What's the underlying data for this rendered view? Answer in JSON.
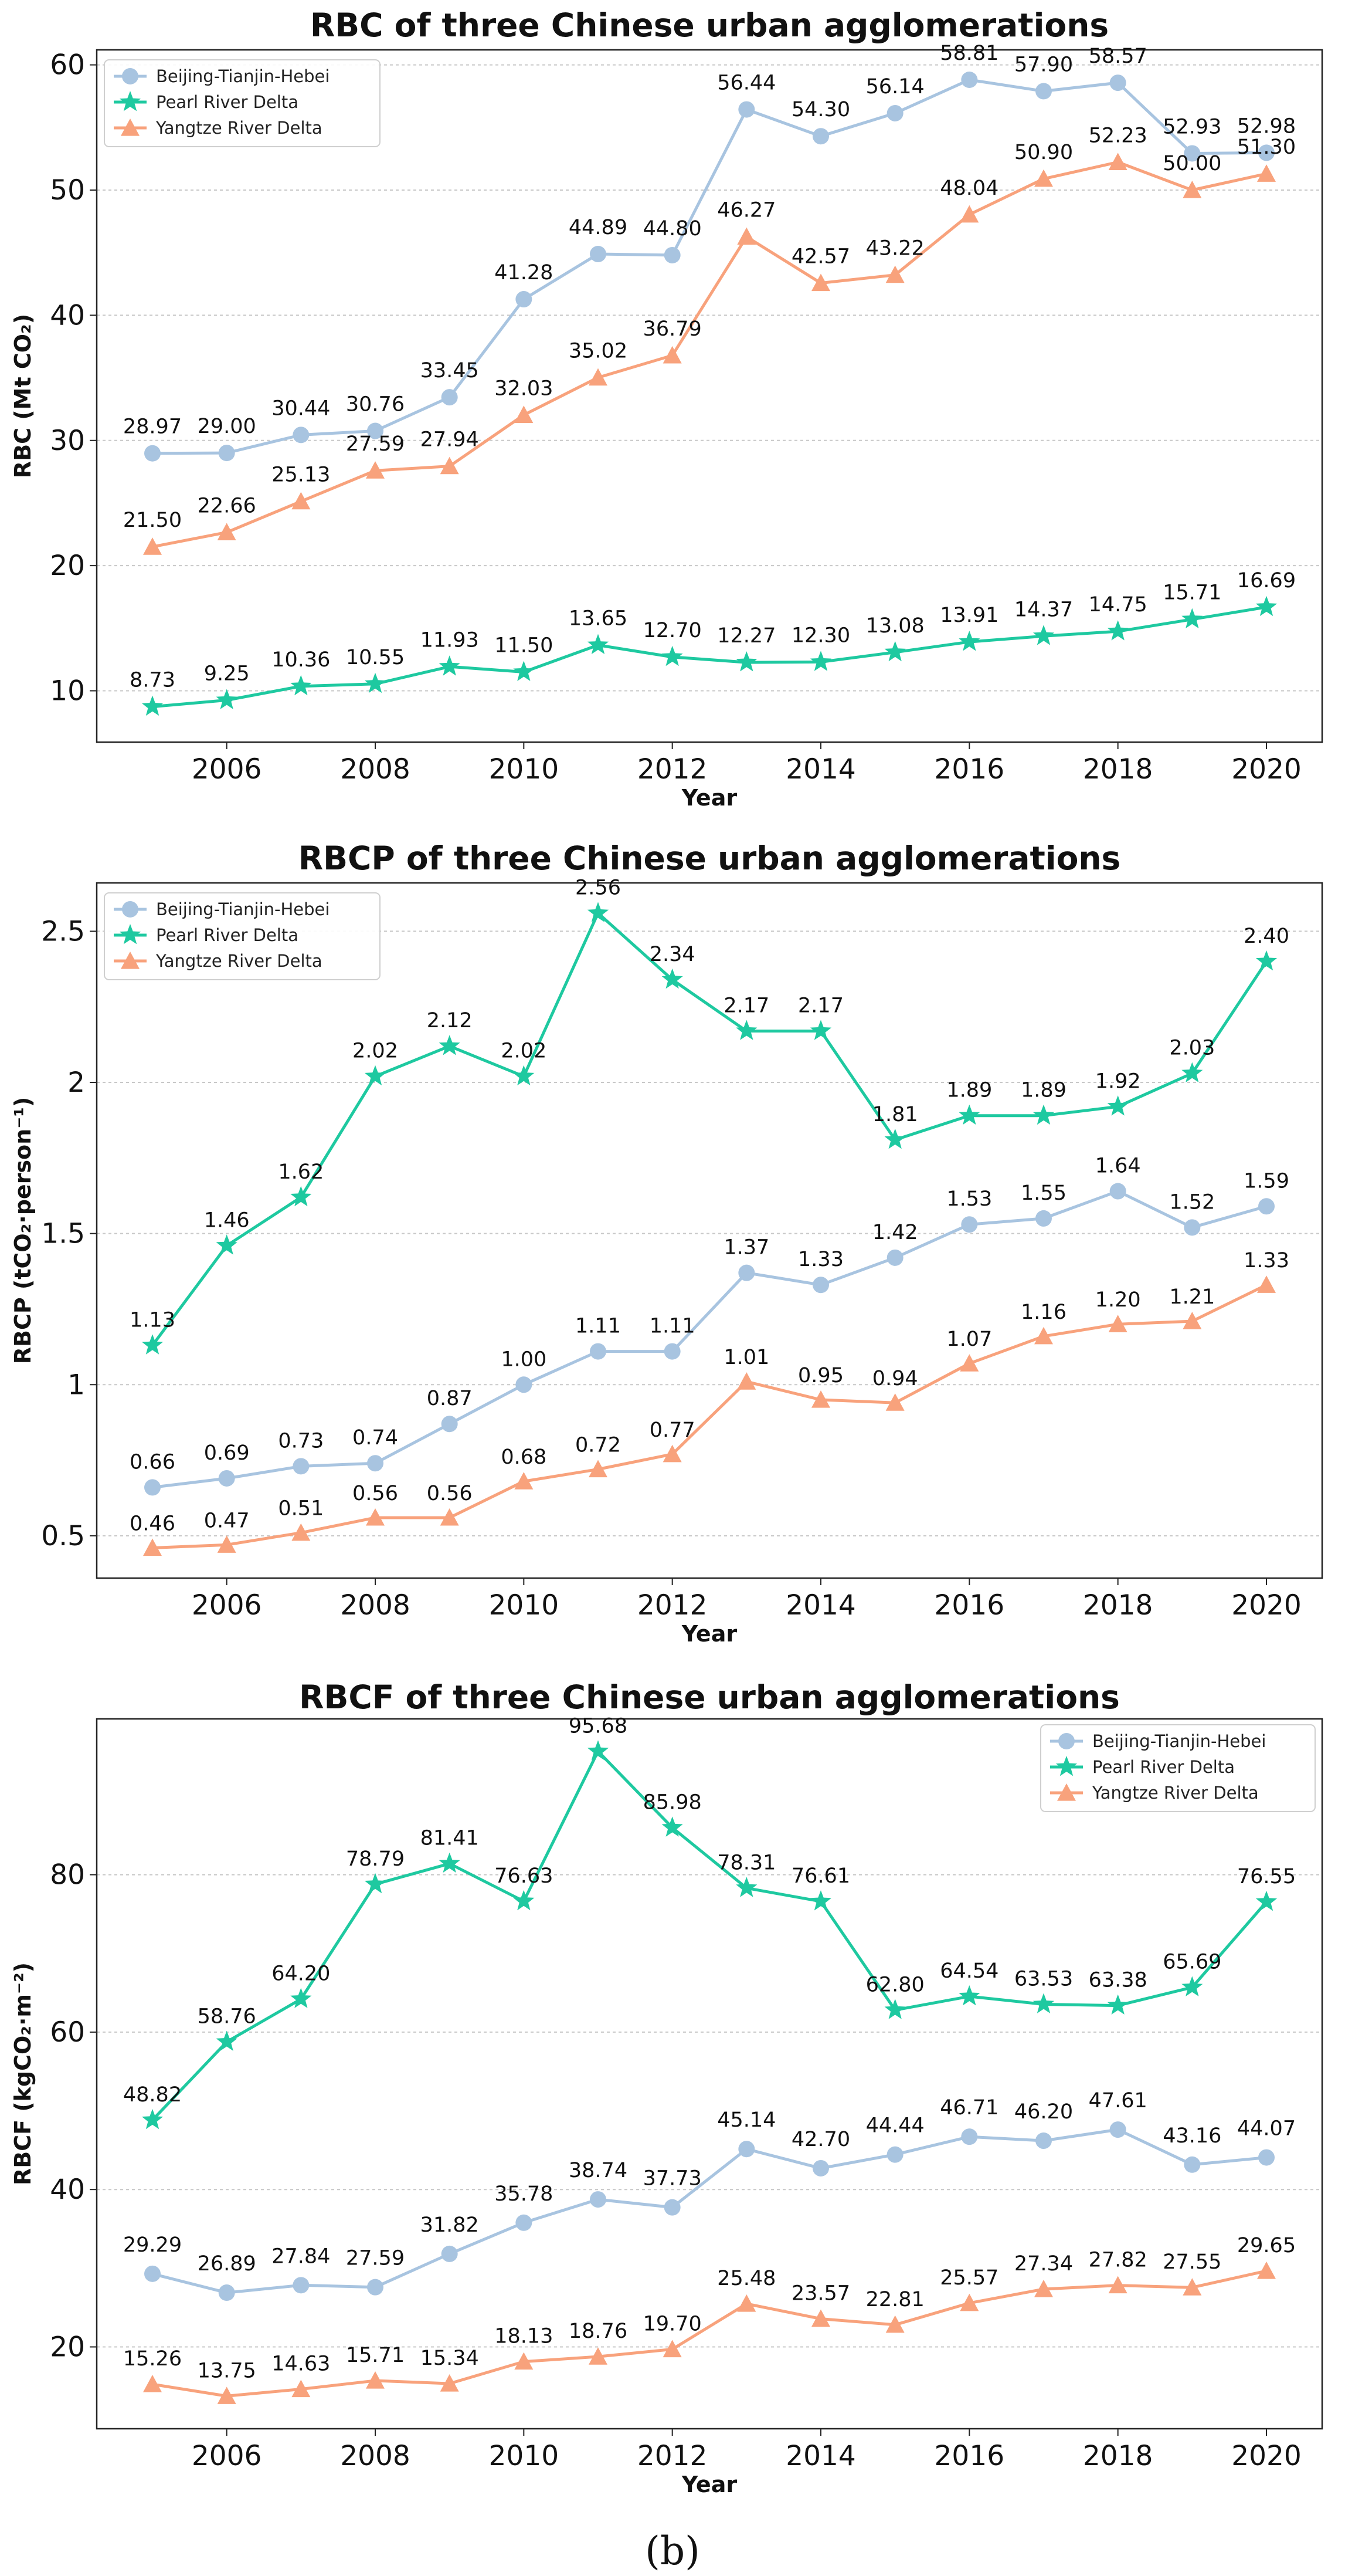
{
  "caption": "(b)",
  "chart_data": [
    {
      "type": "line",
      "title": "RBC of three Chinese urban agglomerations",
      "xlabel": "Year",
      "ylabel": "RBC (Mt CO₂)",
      "x": [
        2005,
        2006,
        2007,
        2008,
        2009,
        2010,
        2011,
        2012,
        2013,
        2014,
        2015,
        2016,
        2017,
        2018,
        2019,
        2020
      ],
      "xticks": [
        2006,
        2008,
        2010,
        2012,
        2014,
        2016,
        2018,
        2020
      ],
      "yticks": [
        10,
        20,
        30,
        40,
        50,
        60
      ],
      "ylim": [
        5.9,
        61.2
      ],
      "decimals": 2,
      "grid": true,
      "legend_position": "top-left",
      "series": [
        {
          "name": "Beijing-Tianjin-Hebei",
          "color": "#a8c4e0",
          "marker": "circle",
          "values": [
            28.97,
            29.0,
            30.44,
            30.76,
            33.45,
            41.28,
            44.89,
            44.8,
            56.44,
            54.3,
            56.14,
            58.81,
            57.9,
            58.57,
            52.93,
            52.98
          ]
        },
        {
          "name": "Pearl River Delta",
          "color": "#1ec9a0",
          "marker": "star",
          "values": [
            8.73,
            9.25,
            10.36,
            10.55,
            11.93,
            11.5,
            13.65,
            12.7,
            12.27,
            12.3,
            13.08,
            13.91,
            14.37,
            14.75,
            15.71,
            16.69
          ]
        },
        {
          "name": "Yangtze River Delta",
          "color": "#f8a27c",
          "marker": "triangle",
          "values": [
            21.5,
            22.66,
            25.13,
            27.59,
            27.94,
            32.03,
            35.02,
            36.79,
            46.27,
            42.57,
            43.22,
            48.04,
            50.9,
            52.23,
            50.0,
            51.3
          ]
        }
      ]
    },
    {
      "type": "line",
      "title": "RBCP of three Chinese urban agglomerations",
      "xlabel": "Year",
      "ylabel": "RBCP (tCO₂·person⁻¹)",
      "x": [
        2005,
        2006,
        2007,
        2008,
        2009,
        2010,
        2011,
        2012,
        2013,
        2014,
        2015,
        2016,
        2017,
        2018,
        2019,
        2020
      ],
      "xticks": [
        2006,
        2008,
        2010,
        2012,
        2014,
        2016,
        2018,
        2020
      ],
      "yticks": [
        0.5,
        1.0,
        1.5,
        2.0,
        2.5
      ],
      "ylim": [
        0.36,
        2.66
      ],
      "decimals": 2,
      "grid": true,
      "legend_position": "top-left",
      "series": [
        {
          "name": "Beijing-Tianjin-Hebei",
          "color": "#a8c4e0",
          "marker": "circle",
          "values": [
            0.66,
            0.69,
            0.73,
            0.74,
            0.87,
            1.0,
            1.11,
            1.11,
            1.37,
            1.33,
            1.42,
            1.53,
            1.55,
            1.64,
            1.52,
            1.59
          ]
        },
        {
          "name": "Pearl River Delta",
          "color": "#1ec9a0",
          "marker": "star",
          "values": [
            1.13,
            1.46,
            1.62,
            2.02,
            2.12,
            2.02,
            2.56,
            2.34,
            2.17,
            2.17,
            1.81,
            1.89,
            1.89,
            1.92,
            2.03,
            2.4
          ]
        },
        {
          "name": "Yangtze River Delta",
          "color": "#f8a27c",
          "marker": "triangle",
          "values": [
            0.46,
            0.47,
            0.51,
            0.56,
            0.56,
            0.68,
            0.72,
            0.77,
            1.01,
            0.95,
            0.94,
            1.07,
            1.16,
            1.2,
            1.21,
            1.33
          ]
        }
      ]
    },
    {
      "type": "line",
      "title": "RBCF of three Chinese urban agglomerations",
      "xlabel": "Year",
      "ylabel": "RBCF (kgCO₂·m⁻²)",
      "x": [
        2005,
        2006,
        2007,
        2008,
        2009,
        2010,
        2011,
        2012,
        2013,
        2014,
        2015,
        2016,
        2017,
        2018,
        2019,
        2020
      ],
      "xticks": [
        2006,
        2008,
        2010,
        2012,
        2014,
        2016,
        2018,
        2020
      ],
      "yticks": [
        20,
        40,
        60,
        80
      ],
      "ylim": [
        9.6,
        99.8
      ],
      "decimals": 2,
      "grid": true,
      "legend_position": "top-right",
      "series": [
        {
          "name": "Beijing-Tianjin-Hebei",
          "color": "#a8c4e0",
          "marker": "circle",
          "values": [
            29.29,
            26.89,
            27.84,
            27.59,
            31.82,
            35.78,
            38.74,
            37.73,
            45.14,
            42.7,
            44.44,
            46.71,
            46.2,
            47.61,
            43.16,
            44.07
          ]
        },
        {
          "name": "Pearl River Delta",
          "color": "#1ec9a0",
          "marker": "star",
          "values": [
            48.82,
            58.76,
            64.2,
            78.79,
            81.41,
            76.63,
            95.68,
            85.98,
            78.31,
            76.61,
            62.8,
            64.54,
            63.53,
            63.38,
            65.69,
            76.55
          ]
        },
        {
          "name": "Yangtze River Delta",
          "color": "#f8a27c",
          "marker": "triangle",
          "values": [
            15.26,
            13.75,
            14.63,
            15.71,
            15.34,
            18.13,
            18.76,
            19.7,
            25.48,
            23.57,
            22.81,
            25.57,
            27.34,
            27.82,
            27.55,
            29.65
          ]
        }
      ]
    }
  ]
}
